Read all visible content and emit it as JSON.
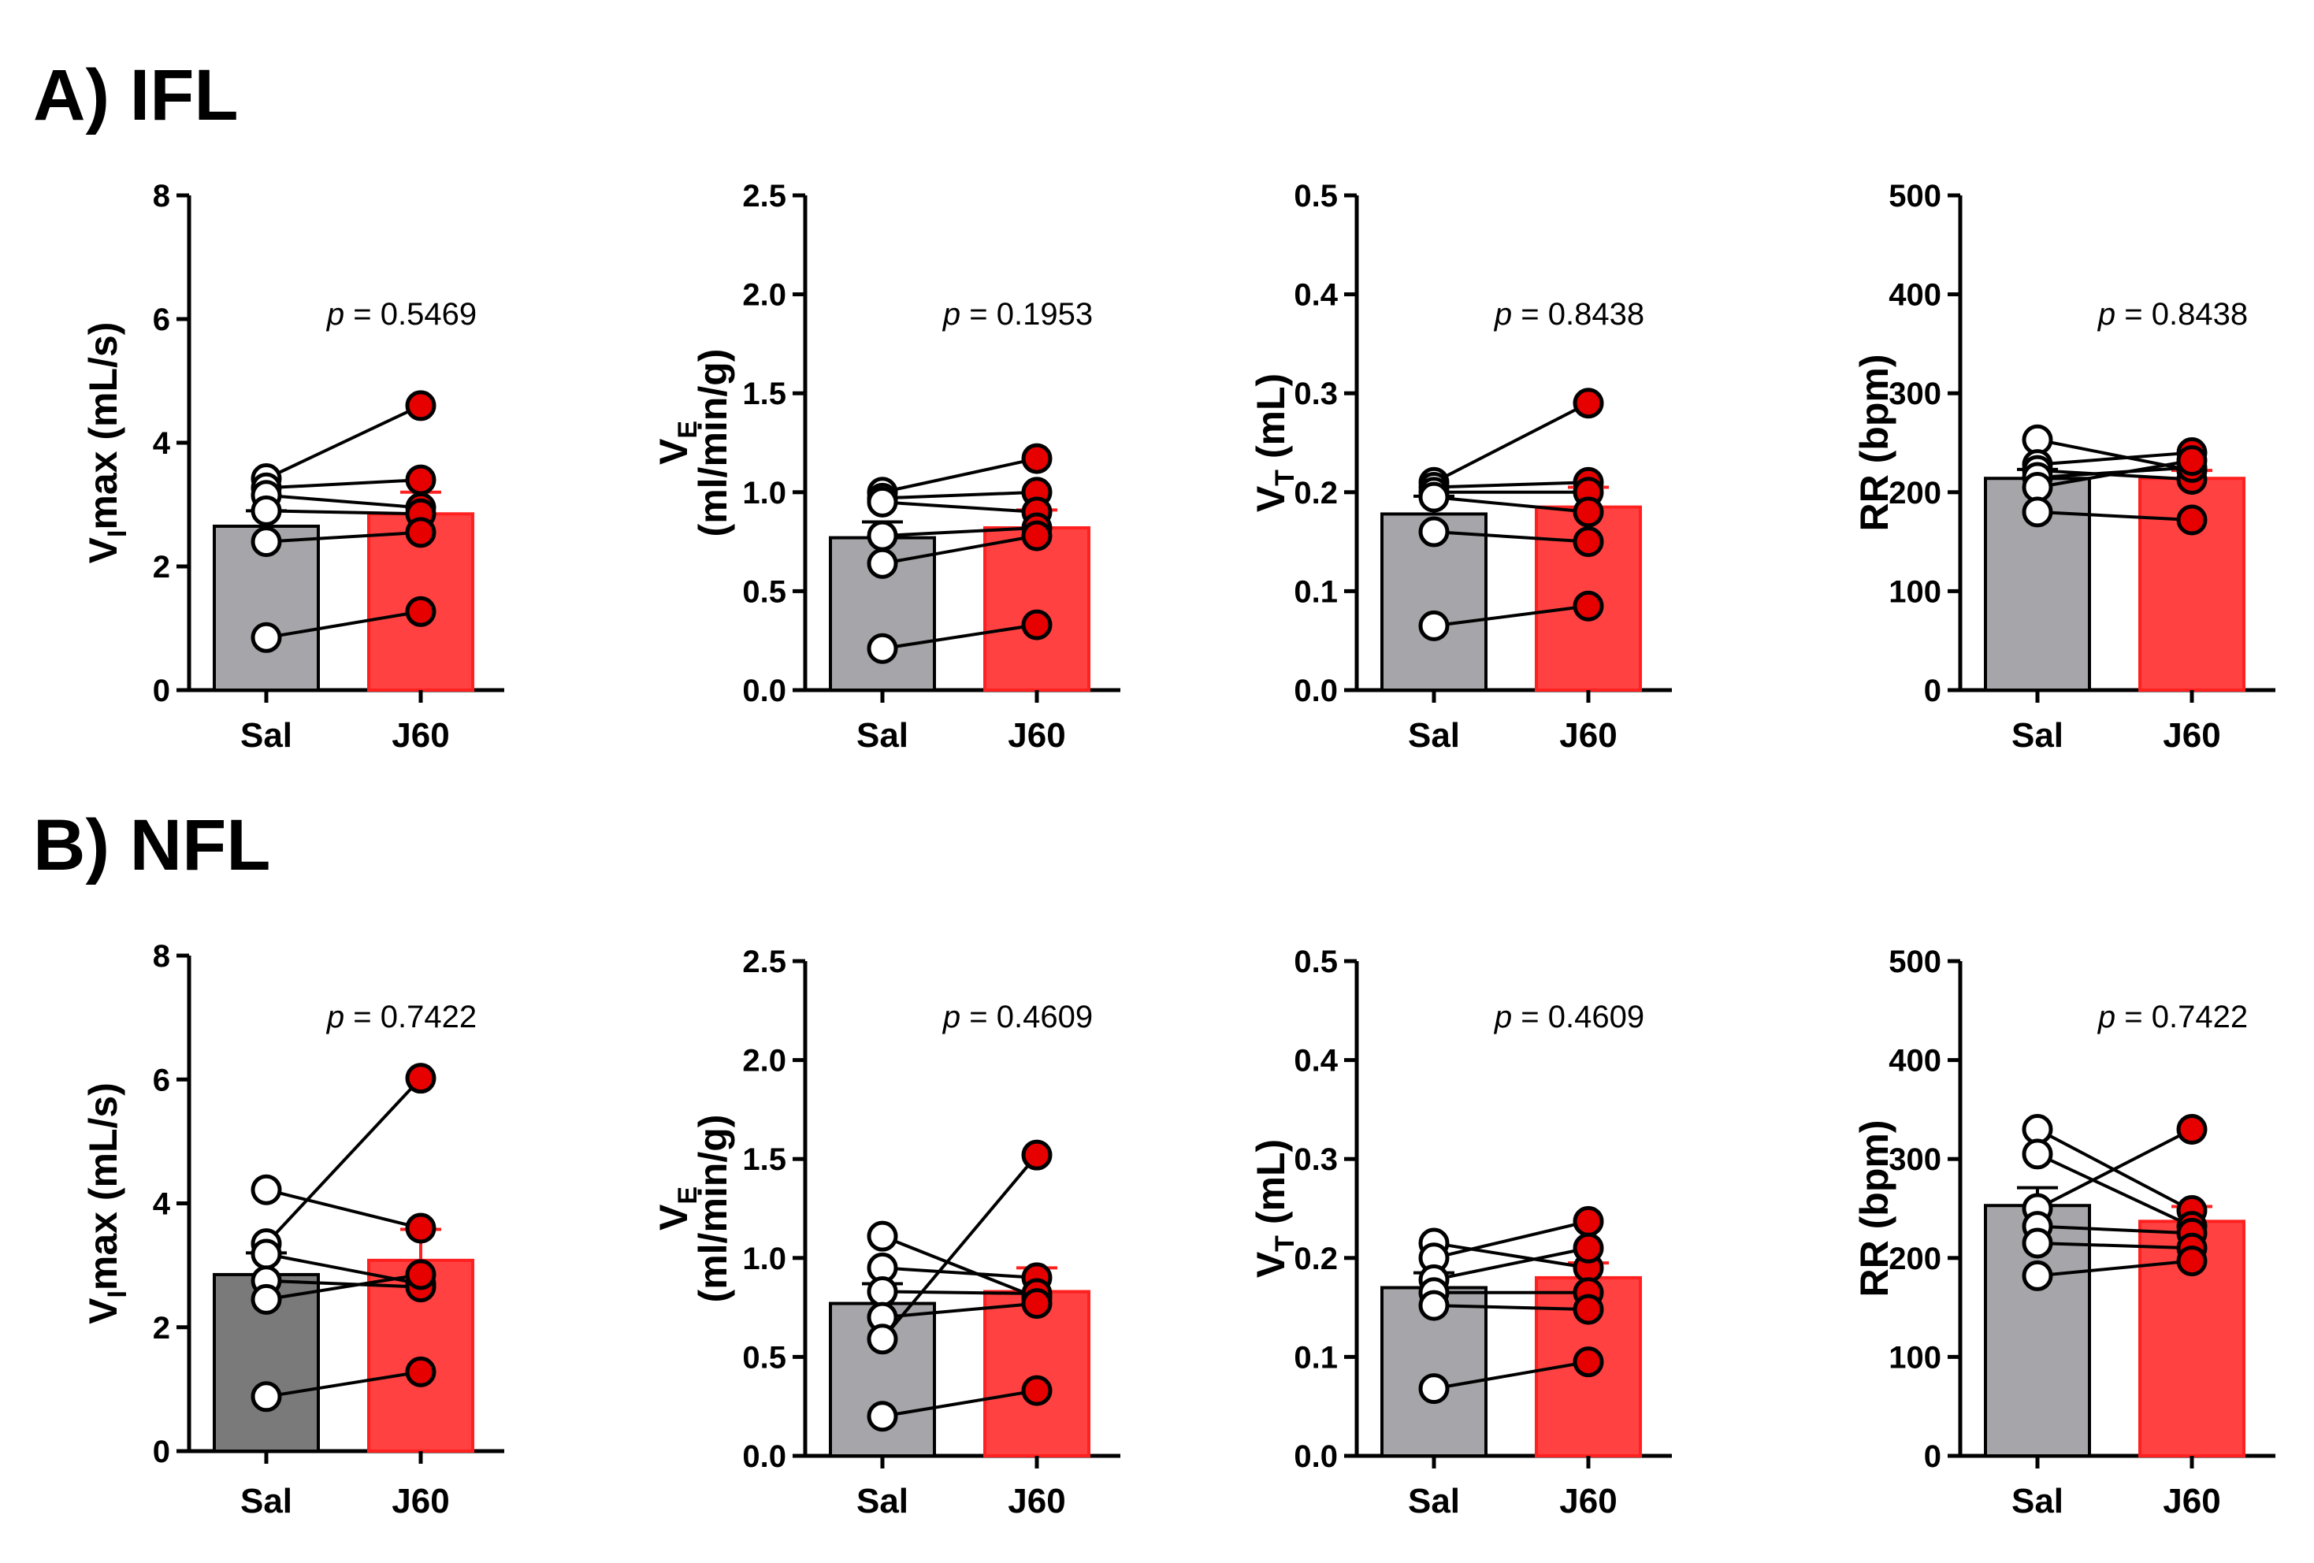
{
  "sections": [
    {
      "label": "A) IFL"
    },
    {
      "label": "B) NFL"
    }
  ],
  "chart_data": [
    {
      "type": "bar",
      "section": "A) IFL",
      "ylabel": "VImax (mL/s)",
      "ylabel_main": "V",
      "ylabel_sub": "I",
      "ylabel_rest": "max (mL/s)",
      "ylim": [
        0,
        8
      ],
      "yticks": [
        "0",
        "2",
        "4",
        "6",
        "8"
      ],
      "categories": [
        "Sal",
        "J60"
      ],
      "p_prefix": "p",
      "p_text": " = 0.5469",
      "means": [
        2.65,
        2.85
      ],
      "sem": [
        0.25,
        0.35
      ],
      "bar_colors": [
        "#a6a6aa",
        "#ff4141"
      ],
      "pairs": [
        [
          3.42,
          4.6
        ],
        [
          3.27,
          3.4
        ],
        [
          3.15,
          2.95
        ],
        [
          2.9,
          2.85
        ],
        [
          2.4,
          2.55
        ],
        [
          0.85,
          1.27
        ]
      ]
    },
    {
      "type": "bar",
      "section": "A) IFL",
      "ylabel": "VE (ml/min/g)",
      "ylabel_main": "V",
      "ylabel_sub": "E",
      "ylabel_line2": "(ml/min/g)",
      "ylim": [
        0,
        2.5
      ],
      "yticks": [
        "0.0",
        "0.5",
        "1.0",
        "1.5",
        "2.0",
        "2.5"
      ],
      "categories": [
        "Sal",
        "J60"
      ],
      "p_prefix": "p",
      "p_text": " = 0.1953",
      "means": [
        0.77,
        0.82
      ],
      "sem": [
        0.08,
        0.09
      ],
      "bar_colors": [
        "#a6a6aa",
        "#ff4141"
      ],
      "pairs": [
        [
          1.0,
          1.17
        ],
        [
          0.97,
          1.0
        ],
        [
          0.95,
          0.9
        ],
        [
          0.78,
          0.82
        ],
        [
          0.64,
          0.78
        ],
        [
          0.21,
          0.33
        ]
      ]
    },
    {
      "type": "bar",
      "section": "A) IFL",
      "ylabel": "VT (mL)",
      "ylabel_main": "V",
      "ylabel_sub": "T",
      "ylabel_rest": " (mL)",
      "ylim": [
        0,
        0.5
      ],
      "yticks": [
        "0.0",
        "0.1",
        "0.2",
        "0.3",
        "0.4",
        "0.5"
      ],
      "categories": [
        "Sal",
        "J60"
      ],
      "p_prefix": "p",
      "p_text": " = 0.8438",
      "means": [
        0.178,
        0.185
      ],
      "sem": [
        0.018,
        0.02
      ],
      "bar_colors": [
        "#a6a6aa",
        "#ff4141"
      ],
      "pairs": [
        [
          0.21,
          0.29
        ],
        [
          0.205,
          0.21
        ],
        [
          0.2,
          0.2
        ],
        [
          0.195,
          0.18
        ],
        [
          0.16,
          0.15
        ],
        [
          0.065,
          0.085
        ]
      ]
    },
    {
      "type": "bar",
      "section": "A) IFL",
      "ylabel": "RR (bpm)",
      "ylabel_main": "RR (bpm)",
      "ylim": [
        0,
        500
      ],
      "yticks": [
        "0",
        "100",
        "200",
        "300",
        "400",
        "500"
      ],
      "categories": [
        "Sal",
        "J60"
      ],
      "p_prefix": "p",
      "p_text": " = 0.8438",
      "means": [
        214,
        214
      ],
      "sem": [
        9,
        8
      ],
      "bar_colors": [
        "#a6a6aa",
        "#ff4141"
      ],
      "pairs": [
        [
          253,
          222
        ],
        [
          228,
          240
        ],
        [
          222,
          213
        ],
        [
          215,
          225
        ],
        [
          205,
          232
        ],
        [
          180,
          172
        ]
      ]
    },
    {
      "type": "bar",
      "section": "B) NFL",
      "ylabel": "VImax (mL/s)",
      "ylabel_main": "V",
      "ylabel_sub": "I",
      "ylabel_rest": "max (mL/s)",
      "ylim": [
        0,
        8
      ],
      "yticks": [
        "0",
        "2",
        "4",
        "6",
        "8"
      ],
      "categories": [
        "Sal",
        "J60"
      ],
      "p_prefix": "p",
      "p_text": " = 0.7422",
      "means": [
        2.85,
        3.08
      ],
      "sem": [
        0.35,
        0.5
      ],
      "bar_colors": [
        "#7a7a7a",
        "#ff4141"
      ],
      "pairs": [
        [
          4.22,
          3.6
        ],
        [
          3.35,
          6.02
        ],
        [
          3.18,
          2.7
        ],
        [
          2.75,
          2.65
        ],
        [
          2.45,
          2.85
        ],
        [
          0.88,
          1.28
        ]
      ]
    },
    {
      "type": "bar",
      "section": "B) NFL",
      "ylabel": "VE (ml/min/g)",
      "ylabel_main": "V",
      "ylabel_sub": "E",
      "ylabel_line2": "(ml/min/g)",
      "ylim": [
        0,
        2.5
      ],
      "yticks": [
        "0.0",
        "0.5",
        "1.0",
        "1.5",
        "2.0",
        "2.5"
      ],
      "categories": [
        "Sal",
        "J60"
      ],
      "p_prefix": "p",
      "p_text": " = 0.4609",
      "means": [
        0.77,
        0.83
      ],
      "sem": [
        0.1,
        0.12
      ],
      "bar_colors": [
        "#a6a6aa",
        "#ff4141"
      ],
      "pairs": [
        [
          1.11,
          0.8
        ],
        [
          0.95,
          0.9
        ],
        [
          0.83,
          0.82
        ],
        [
          0.7,
          0.77
        ],
        [
          0.59,
          1.52
        ],
        [
          0.2,
          0.33
        ]
      ]
    },
    {
      "type": "bar",
      "section": "B) NFL",
      "ylabel": "VT (mL)",
      "ylabel_main": "V",
      "ylabel_sub": "T",
      "ylabel_rest": " (mL)",
      "ylim": [
        0,
        0.5
      ],
      "yticks": [
        "0.0",
        "0.1",
        "0.2",
        "0.3",
        "0.4",
        "0.5"
      ],
      "categories": [
        "Sal",
        "J60"
      ],
      "p_prefix": "p",
      "p_text": " = 0.4609",
      "means": [
        0.17,
        0.18
      ],
      "sem": [
        0.015,
        0.015
      ],
      "bar_colors": [
        "#a6a6aa",
        "#ff4141"
      ],
      "pairs": [
        [
          0.215,
          0.19
        ],
        [
          0.2,
          0.237
        ],
        [
          0.178,
          0.21
        ],
        [
          0.165,
          0.165
        ],
        [
          0.152,
          0.148
        ],
        [
          0.068,
          0.095
        ]
      ]
    },
    {
      "type": "bar",
      "section": "B) NFL",
      "ylabel": "RR (bpm)",
      "ylabel_main": "RR (bpm)",
      "ylim": [
        0,
        500
      ],
      "yticks": [
        "0",
        "100",
        "200",
        "300",
        "400",
        "500"
      ],
      "categories": [
        "Sal",
        "J60"
      ],
      "p_prefix": "p",
      "p_text": " = 0.7422",
      "means": [
        253,
        237
      ],
      "sem": [
        18,
        15
      ],
      "bar_colors": [
        "#a6a6aa",
        "#ff4141"
      ],
      "pairs": [
        [
          330,
          248
        ],
        [
          305,
          232
        ],
        [
          250,
          330
        ],
        [
          232,
          225
        ],
        [
          215,
          210
        ],
        [
          182,
          197
        ]
      ]
    }
  ]
}
